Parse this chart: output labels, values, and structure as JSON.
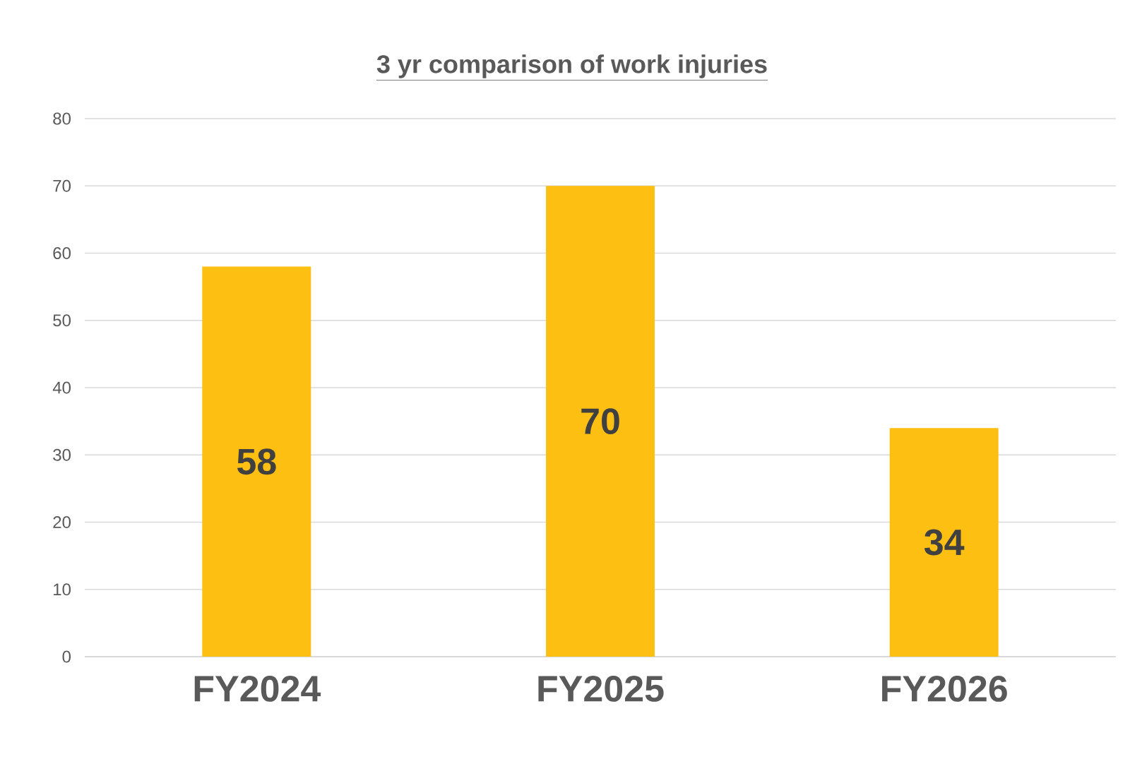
{
  "chart_data": {
    "type": "bar",
    "title": "3 yr comparison of work injuries",
    "categories": [
      "FY2024",
      "FY2025",
      "FY2026"
    ],
    "values": [
      58,
      70,
      34
    ],
    "color": "#fcbf12",
    "ylim": [
      0,
      80
    ],
    "yticks": [
      0,
      10,
      20,
      30,
      40,
      50,
      60,
      70,
      80
    ],
    "grid": "y",
    "data_labels": true
  }
}
